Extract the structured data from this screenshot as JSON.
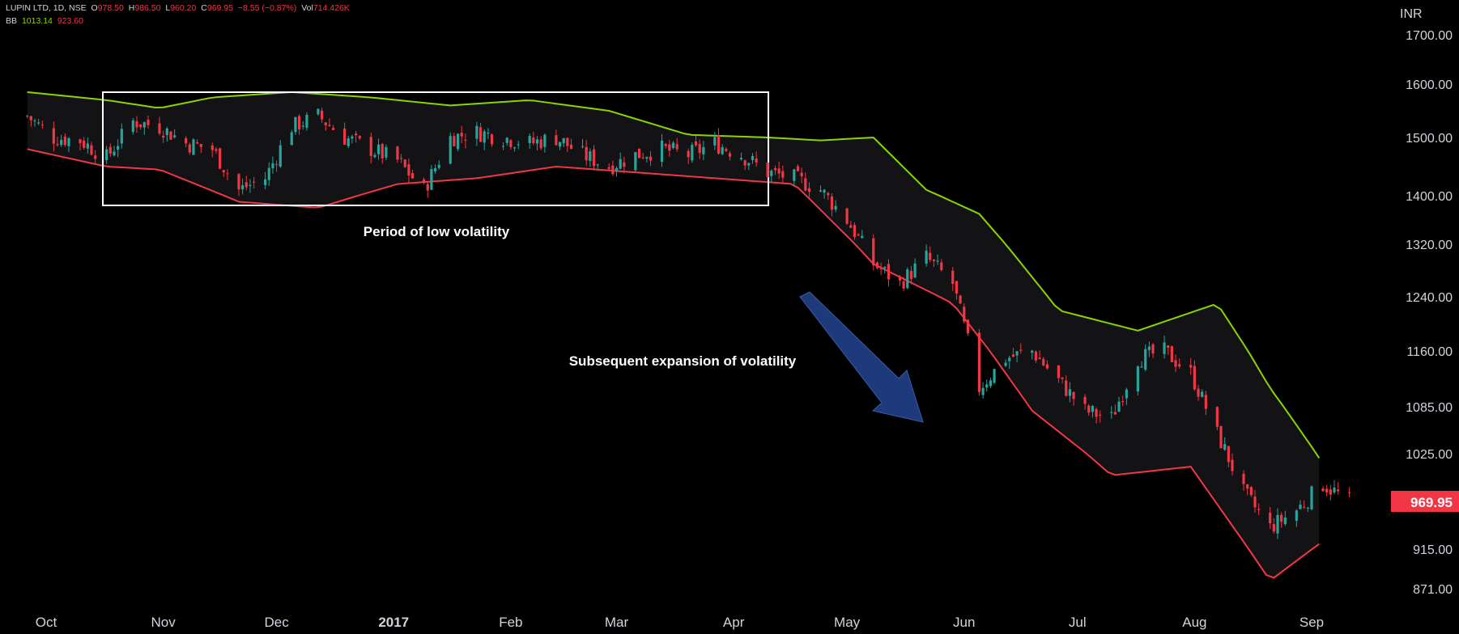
{
  "header": {
    "symbol": "LUPIN LTD, 1D, NSE",
    "o_label": "O",
    "o_value": "978.50",
    "h_label": "H",
    "h_value": "986.50",
    "l_label": "L",
    "l_value": "960.20",
    "c_label": "C",
    "c_value": "969.95",
    "change": "−8.55 (−0.87%)",
    "vol_label": "Vol",
    "vol_value": "714.426K",
    "bb_label": "BB",
    "bb_upper": "1013.14",
    "bb_lower": "923.60"
  },
  "colors": {
    "up": "#26a69a",
    "down": "#f23645",
    "upper_band": "#8bd400",
    "lower_band": "#f23645",
    "band_fill": "#131316",
    "arrow": "#1e3a7a"
  },
  "chart_data": {
    "type": "candlestick",
    "currency": "INR",
    "y_ticks": [
      1700,
      1600,
      1500,
      1400,
      1320,
      1240,
      1160,
      1085,
      1025,
      915,
      871
    ],
    "y_tick_labels": [
      "1700.00",
      "1600.00",
      "1500.00",
      "1400.00",
      "1320.00",
      "1240.00",
      "1160.00",
      "1085.00",
      "1025.00",
      "915.00",
      "871.00"
    ],
    "x_labels": [
      "Oct",
      "Nov",
      "Dec",
      "2017",
      "Feb",
      "Mar",
      "Apr",
      "May",
      "Jun",
      "Jul",
      "Aug",
      "Sep"
    ],
    "last_price": "969.95",
    "annotations": [
      "Period of low volatility",
      "Subsequent expansion of volatility"
    ],
    "close_path": [
      [
        "2016-09-26",
        1540
      ],
      [
        "2016-10-03",
        1500
      ],
      [
        "2016-10-10",
        1495
      ],
      [
        "2016-10-17",
        1465
      ],
      [
        "2016-10-24",
        1530
      ],
      [
        "2016-10-31",
        1520
      ],
      [
        "2016-11-07",
        1490
      ],
      [
        "2016-11-14",
        1480
      ],
      [
        "2016-11-21",
        1410
      ],
      [
        "2016-11-28",
        1430
      ],
      [
        "2016-12-05",
        1520
      ],
      [
        "2016-12-12",
        1540
      ],
      [
        "2016-12-19",
        1500
      ],
      [
        "2016-12-26",
        1480
      ],
      [
        "2017-01-02",
        1460
      ],
      [
        "2017-01-09",
        1410
      ],
      [
        "2017-01-16",
        1500
      ],
      [
        "2017-01-23",
        1510
      ],
      [
        "2017-01-30",
        1500
      ],
      [
        "2017-02-06",
        1490
      ],
      [
        "2017-02-13",
        1500
      ],
      [
        "2017-02-20",
        1470
      ],
      [
        "2017-02-27",
        1450
      ],
      [
        "2017-03-06",
        1470
      ],
      [
        "2017-03-13",
        1480
      ],
      [
        "2017-03-20",
        1470
      ],
      [
        "2017-03-27",
        1490
      ],
      [
        "2017-04-03",
        1470
      ],
      [
        "2017-04-10",
        1440
      ],
      [
        "2017-04-17",
        1430
      ],
      [
        "2017-04-24",
        1410
      ],
      [
        "2017-05-01",
        1360
      ],
      [
        "2017-05-08",
        1290
      ],
      [
        "2017-05-15",
        1260
      ],
      [
        "2017-05-22",
        1300
      ],
      [
        "2017-05-29",
        1260
      ],
      [
        "2017-06-05",
        1110
      ],
      [
        "2017-06-12",
        1150
      ],
      [
        "2017-06-19",
        1160
      ],
      [
        "2017-06-26",
        1120
      ],
      [
        "2017-07-03",
        1080
      ],
      [
        "2017-07-10",
        1070
      ],
      [
        "2017-07-17",
        1150
      ],
      [
        "2017-07-24",
        1160
      ],
      [
        "2017-07-31",
        1130
      ],
      [
        "2017-08-07",
        1050
      ],
      [
        "2017-08-14",
        980
      ],
      [
        "2017-08-21",
        940
      ],
      [
        "2017-08-28",
        960
      ],
      [
        "2017-09-04",
        990
      ],
      [
        "2017-09-11",
        970
      ]
    ],
    "upper_band": [
      [
        "2016-09-26",
        1585
      ],
      [
        "2016-10-17",
        1570
      ],
      [
        "2016-10-31",
        1555
      ],
      [
        "2016-11-14",
        1575
      ],
      [
        "2016-12-05",
        1585
      ],
      [
        "2016-12-26",
        1575
      ],
      [
        "2017-01-16",
        1560
      ],
      [
        "2017-02-06",
        1570
      ],
      [
        "2017-02-27",
        1550
      ],
      [
        "2017-03-20",
        1505
      ],
      [
        "2017-04-10",
        1500
      ],
      [
        "2017-04-24",
        1495
      ],
      [
        "2017-05-08",
        1500
      ],
      [
        "2017-05-22",
        1410
      ],
      [
        "2017-06-05",
        1370
      ],
      [
        "2017-06-26",
        1220
      ],
      [
        "2017-07-17",
        1190
      ],
      [
        "2017-08-07",
        1230
      ],
      [
        "2017-08-21",
        1110
      ],
      [
        "2017-09-04",
        1013
      ]
    ],
    "lower_band": [
      [
        "2016-09-26",
        1480
      ],
      [
        "2016-10-17",
        1450
      ],
      [
        "2016-10-31",
        1445
      ],
      [
        "2016-11-21",
        1390
      ],
      [
        "2016-12-12",
        1380
      ],
      [
        "2017-01-02",
        1420
      ],
      [
        "2017-01-23",
        1430
      ],
      [
        "2017-02-13",
        1450
      ],
      [
        "2017-03-06",
        1440
      ],
      [
        "2017-03-27",
        1430
      ],
      [
        "2017-04-17",
        1420
      ],
      [
        "2017-05-08",
        1290
      ],
      [
        "2017-05-29",
        1230
      ],
      [
        "2017-06-19",
        1080
      ],
      [
        "2017-07-10",
        1000
      ],
      [
        "2017-07-31",
        1010
      ],
      [
        "2017-08-21",
        880
      ],
      [
        "2017-09-04",
        924
      ]
    ]
  }
}
